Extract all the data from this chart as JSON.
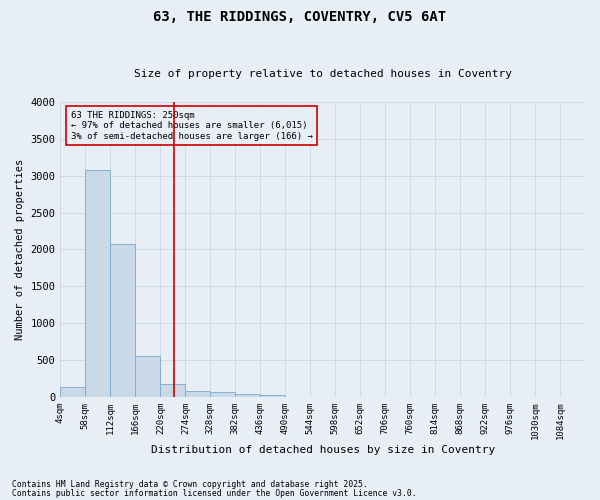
{
  "title1": "63, THE RIDDINGS, COVENTRY, CV5 6AT",
  "title2": "Size of property relative to detached houses in Coventry",
  "xlabel": "Distribution of detached houses by size in Coventry",
  "ylabel": "Number of detached properties",
  "footnote1": "Contains HM Land Registry data © Crown copyright and database right 2025.",
  "footnote2": "Contains public sector information licensed under the Open Government Licence v3.0.",
  "annotation_line1": "63 THE RIDDINGS: 250sqm",
  "annotation_line2": "← 97% of detached houses are smaller (6,015)",
  "annotation_line3": "3% of semi-detached houses are larger (166) →",
  "bar_color": "#c9d9e8",
  "bar_edge_color": "#7aaac8",
  "vline_color": "#cc0000",
  "annotation_box_color": "#cc0000",
  "grid_color": "#c8d0dc",
  "background_color": "#e8eef5",
  "categories": [
    "4sqm",
    "58sqm",
    "112sqm",
    "166sqm",
    "220sqm",
    "274sqm",
    "328sqm",
    "382sqm",
    "436sqm",
    "490sqm",
    "544sqm",
    "598sqm",
    "652sqm",
    "706sqm",
    "760sqm",
    "814sqm",
    "868sqm",
    "922sqm",
    "976sqm",
    "1030sqm",
    "1084sqm"
  ],
  "bin_edges": [
    4,
    58,
    112,
    166,
    220,
    274,
    328,
    382,
    436,
    490,
    544,
    598,
    652,
    706,
    760,
    814,
    868,
    922,
    976,
    1030,
    1084
  ],
  "values": [
    130,
    3080,
    2080,
    560,
    180,
    75,
    65,
    40,
    20,
    5,
    0,
    0,
    0,
    0,
    0,
    0,
    0,
    0,
    0,
    0
  ],
  "ylim": [
    0,
    4000
  ],
  "yticks": [
    0,
    500,
    1000,
    1500,
    2000,
    2500,
    3000,
    3500,
    4000
  ],
  "vline_x": 250,
  "figwidth": 6.0,
  "figheight": 5.0,
  "dpi": 100
}
